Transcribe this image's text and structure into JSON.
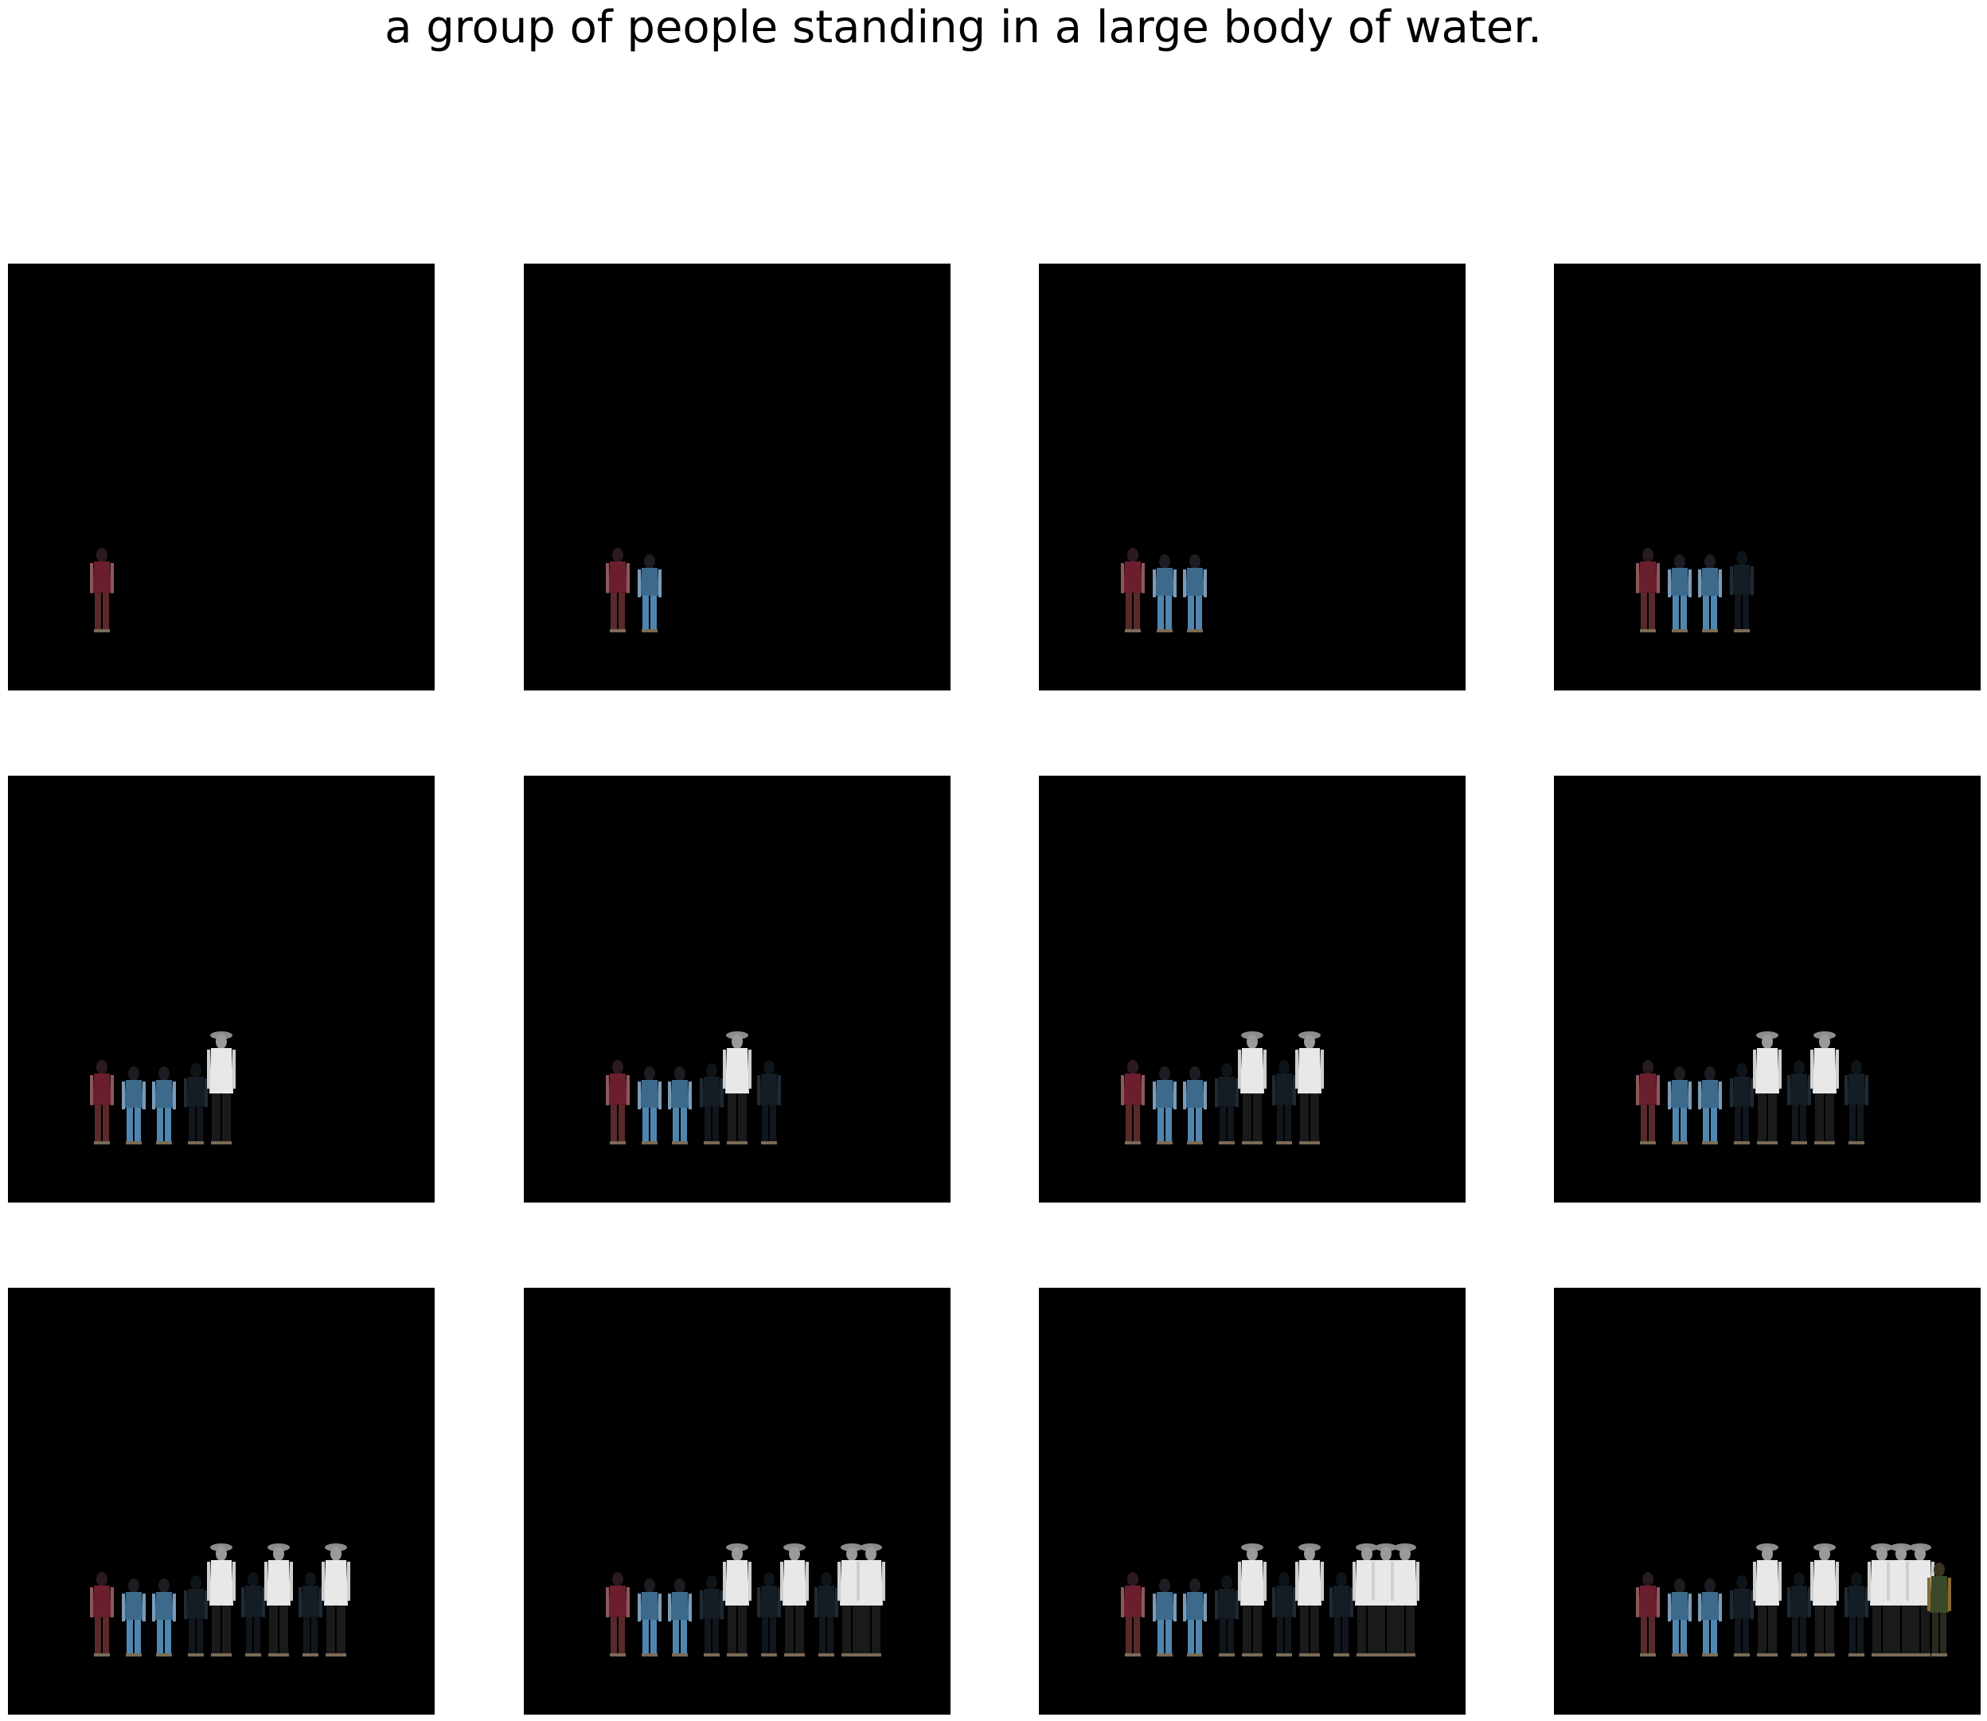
{
  "title": "a group of people standing in a large body of water.",
  "grid": {
    "rows": 3,
    "columns": 4
  },
  "colors": {
    "background": "#ffffff",
    "panel": "#000000"
  },
  "people_palette": [
    "red-dress",
    "blue-jeans",
    "blue-jeans",
    "dark-clothing",
    "white-shirt-hat",
    "dark-clothing",
    "white-shirt-hat",
    "dark-clothing",
    "white-shirt-hat",
    "white-shirt-hat",
    "white-shirt-hat",
    "green-jacket"
  ],
  "frames": [
    {
      "people_count": 1
    },
    {
      "people_count": 2
    },
    {
      "people_count": 3
    },
    {
      "people_count": 4
    },
    {
      "people_count": 5
    },
    {
      "people_count": 6
    },
    {
      "people_count": 7
    },
    {
      "people_count": 8
    },
    {
      "people_count": 9
    },
    {
      "people_count": 10
    },
    {
      "people_count": 11
    },
    {
      "people_count": 12
    }
  ]
}
